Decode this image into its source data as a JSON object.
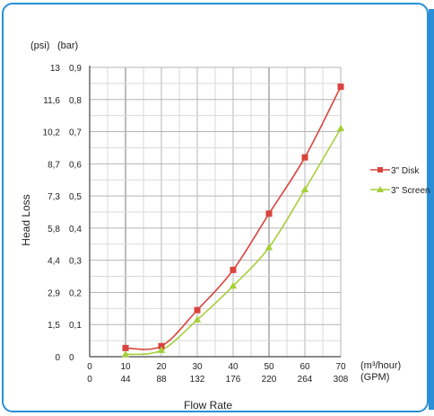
{
  "chart_data": {
    "type": "line",
    "title": "",
    "xlabel": "Flow Rate",
    "ylabel": "Head Loss",
    "x_unit_primary": "(m³/hour)",
    "x_unit_secondary": "(GPM)",
    "y_unit_primary": "(psi)",
    "y_unit_secondary": "(bar)",
    "x_ticks_m3h": [
      "0",
      "10",
      "20",
      "30",
      "40",
      "50",
      "60",
      "70"
    ],
    "x_ticks_gpm": [
      "0",
      "44",
      "88",
      "132",
      "176",
      "220",
      "264",
      "308"
    ],
    "y_ticks_bar": [
      "0",
      "0,1",
      "0,2",
      "0,3",
      "0,4",
      "0,5",
      "0,6",
      "0,7",
      "0,8",
      "0,9"
    ],
    "y_ticks_psi": [
      "0",
      "1,5",
      "2,9",
      "4,4",
      "5,8",
      "7,3",
      "8,7",
      "10,2",
      "11,6",
      "13"
    ],
    "xlim": [
      0,
      70
    ],
    "ylim": [
      0,
      0.9
    ],
    "grid": true,
    "legend_position": "right",
    "series": [
      {
        "name": "3\" Disk",
        "color": "#d9443e",
        "marker": "square",
        "x": [
          10,
          20,
          30,
          40,
          50,
          60,
          70
        ],
        "y": [
          0.027,
          0.033,
          0.145,
          0.27,
          0.445,
          0.62,
          0.84
        ]
      },
      {
        "name": "3\" Screen",
        "color": "#a6cf3a",
        "marker": "triangle",
        "x": [
          10,
          20,
          30,
          40,
          50,
          60,
          70
        ],
        "y": [
          0.007,
          0.02,
          0.115,
          0.22,
          0.34,
          0.52,
          0.71
        ]
      }
    ]
  }
}
